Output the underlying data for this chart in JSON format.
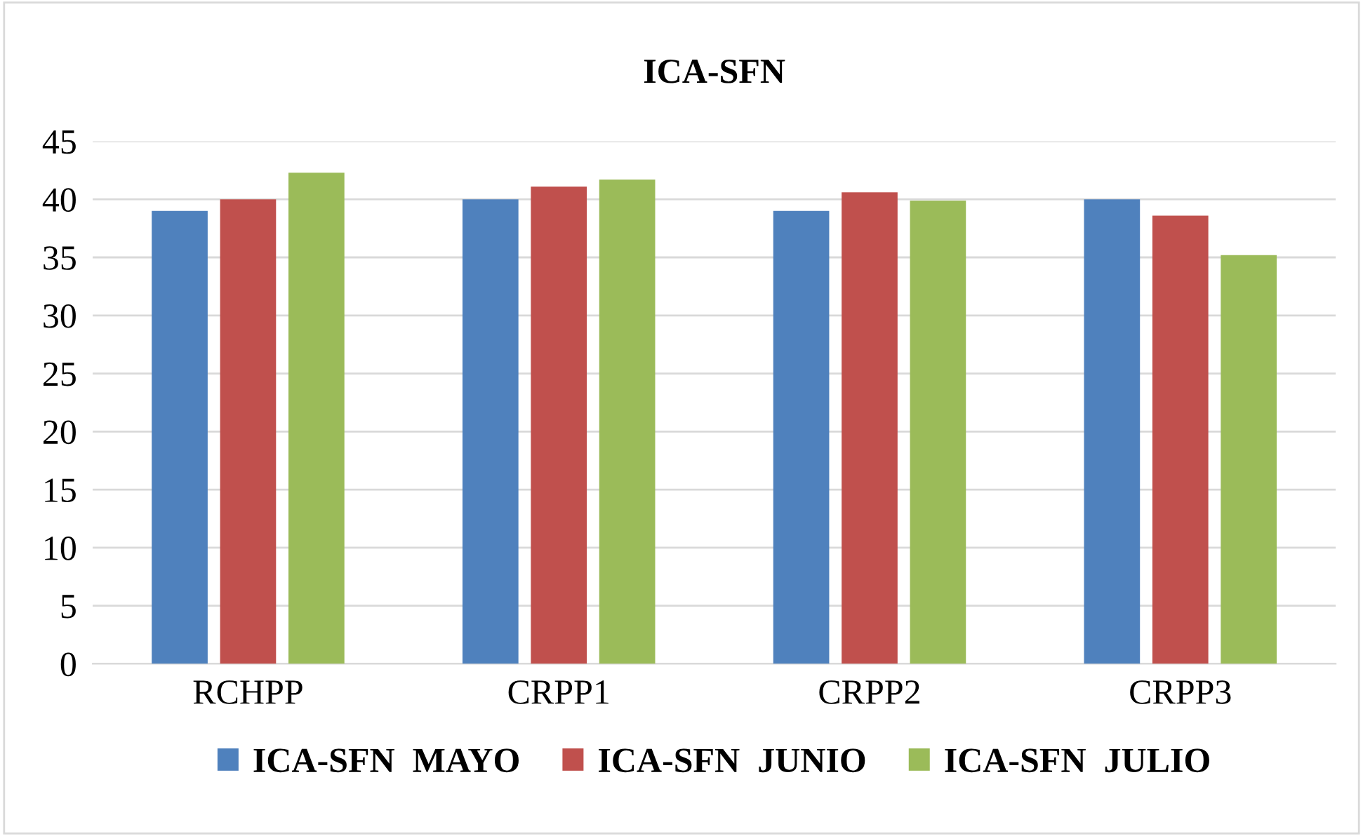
{
  "chart_data": {
    "type": "bar",
    "title": "ICA-SFN",
    "categories": [
      "RCHPP",
      "CRPP1",
      "CRPP2",
      "CRPP3"
    ],
    "series": [
      {
        "name": "ICA-SFN  MAYO",
        "color": "#4f81bd",
        "values": [
          39,
          40,
          39,
          40
        ]
      },
      {
        "name": "ICA-SFN  JUNIO",
        "color": "#c0504d",
        "values": [
          40,
          41.1,
          40.6,
          38.6
        ]
      },
      {
        "name": "ICA-SFN  JULIO",
        "color": "#9bbb59",
        "values": [
          42.3,
          41.7,
          39.9,
          35.2
        ]
      }
    ],
    "ylim": [
      0,
      45
    ],
    "yticks": [
      0,
      5,
      10,
      15,
      20,
      25,
      30,
      35,
      40,
      45
    ],
    "grid": "y",
    "legend": "bottom"
  }
}
